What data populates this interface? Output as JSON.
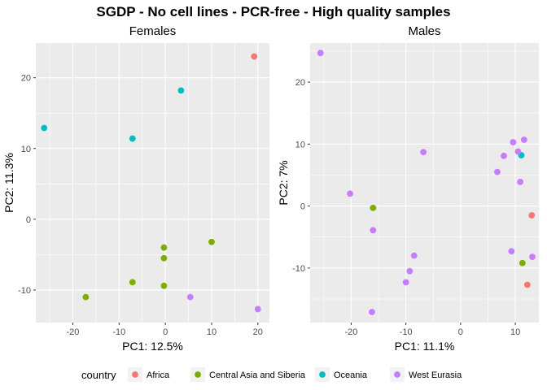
{
  "title": "SGDP - No cell lines - PCR-free - High quality samples",
  "legend": {
    "title": "country",
    "entries": [
      {
        "label": "Africa",
        "color": "#F8766D"
      },
      {
        "label": "Central Asia and Siberia",
        "color": "#7CAE00"
      },
      {
        "label": "Oceania",
        "color": "#00BFC4"
      },
      {
        "label": "West Eurasia",
        "color": "#C77CFF"
      }
    ]
  },
  "chart_data": [
    {
      "type": "scatter",
      "title": "Females",
      "xlabel": "PC1: 12.5%",
      "ylabel": "PC2: 11.3%",
      "xlim": [
        -28,
        22.5
      ],
      "ylim": [
        -14.6,
        24.9
      ],
      "xticks": [
        -20,
        -10,
        0,
        10,
        20
      ],
      "yticks": [
        -10,
        0,
        10,
        20
      ],
      "xtick_labels": [
        "-20",
        "-10",
        "0",
        "10",
        "20"
      ],
      "ytick_labels": [
        "-10",
        "0",
        "10",
        "20"
      ],
      "grid": true,
      "series": [
        {
          "name": "Africa",
          "points": [
            [
              19.2,
              23.0
            ]
          ]
        },
        {
          "name": "Central Asia and Siberia",
          "points": [
            [
              -17.2,
              -11.0
            ],
            [
              -7.1,
              -8.9
            ],
            [
              -0.3,
              -9.4
            ],
            [
              -0.3,
              -5.5
            ],
            [
              -0.3,
              -4.0
            ],
            [
              10.0,
              -3.2
            ]
          ]
        },
        {
          "name": "Oceania",
          "points": [
            [
              -26.2,
              12.9
            ],
            [
              -7.1,
              11.4
            ],
            [
              3.4,
              18.2
            ]
          ]
        },
        {
          "name": "West Eurasia",
          "points": [
            [
              5.4,
              -11.0
            ],
            [
              20.0,
              -12.7
            ]
          ]
        }
      ]
    },
    {
      "type": "scatter",
      "title": "Males",
      "xlabel": "PC1: 11.1%",
      "ylabel": "PC2: 7%",
      "xlim": [
        -27.5,
        14.3
      ],
      "ylim": [
        -18.8,
        26.3
      ],
      "xticks": [
        -20,
        -10,
        0,
        10
      ],
      "yticks": [
        -10,
        0,
        10,
        20
      ],
      "xtick_labels": [
        "-20",
        "-10",
        "0",
        "10"
      ],
      "ytick_labels": [
        "-10",
        "0",
        "10",
        "20"
      ],
      "grid": true,
      "series": [
        {
          "name": "Africa",
          "points": [
            [
              13.0,
              -1.5
            ],
            [
              12.2,
              -12.7
            ]
          ]
        },
        {
          "name": "Central Asia and Siberia",
          "points": [
            [
              -16.0,
              -0.3
            ],
            [
              11.3,
              -9.2
            ]
          ]
        },
        {
          "name": "Oceania",
          "points": [
            [
              11.1,
              8.2
            ]
          ]
        },
        {
          "name": "West Eurasia",
          "points": [
            [
              -25.6,
              24.7
            ],
            [
              -20.2,
              2.0
            ],
            [
              -16.0,
              -3.9
            ],
            [
              -16.2,
              -17.1
            ],
            [
              -10.0,
              -12.3
            ],
            [
              -9.3,
              -10.5
            ],
            [
              -8.5,
              -8.0
            ],
            [
              -6.8,
              8.7
            ],
            [
              6.7,
              5.5
            ],
            [
              7.9,
              8.1
            ],
            [
              9.3,
              -7.3
            ],
            [
              9.6,
              10.3
            ],
            [
              10.5,
              8.8
            ],
            [
              10.9,
              3.9
            ],
            [
              11.6,
              10.7
            ],
            [
              13.1,
              -8.2
            ]
          ]
        }
      ]
    }
  ]
}
